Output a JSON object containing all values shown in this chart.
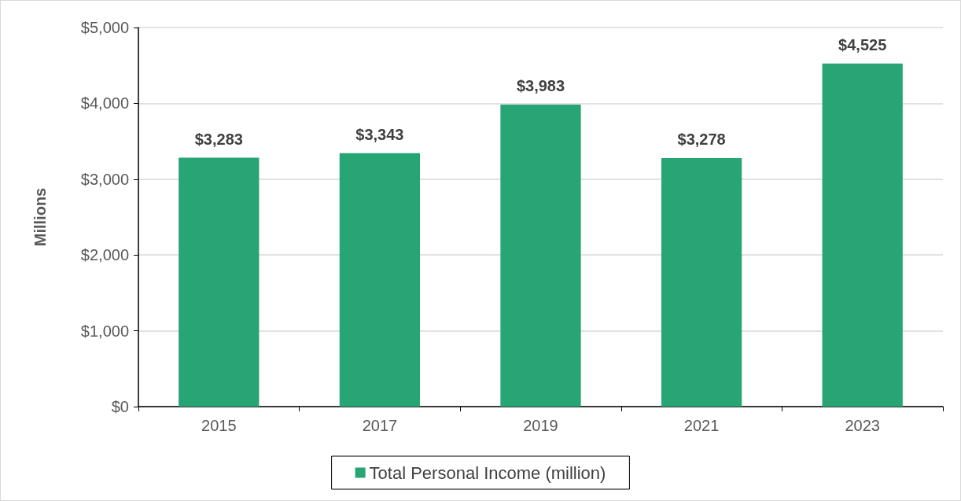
{
  "chart_data": {
    "type": "bar",
    "ylabel": "Millions",
    "categories": [
      "2015",
      "2017",
      "2019",
      "2021",
      "2023"
    ],
    "series": [
      {
        "name": "Total Personal Income (million)",
        "color": "#27a574",
        "values": [
          3283,
          3343,
          3983,
          3278,
          4525
        ],
        "value_labels": [
          "$3,283",
          "$3,343",
          "$3,983",
          "$3,278",
          "$4,525"
        ]
      }
    ],
    "ylim": [
      0,
      5000
    ],
    "yticks": [
      {
        "value": 0,
        "label": "$0"
      },
      {
        "value": 1000,
        "label": "$1,000"
      },
      {
        "value": 2000,
        "label": "$2,000"
      },
      {
        "value": 3000,
        "label": "$3,000"
      },
      {
        "value": 4000,
        "label": "$4,000"
      },
      {
        "value": 5000,
        "label": "$5,000"
      }
    ],
    "grid": "y",
    "legend": "bottom"
  }
}
